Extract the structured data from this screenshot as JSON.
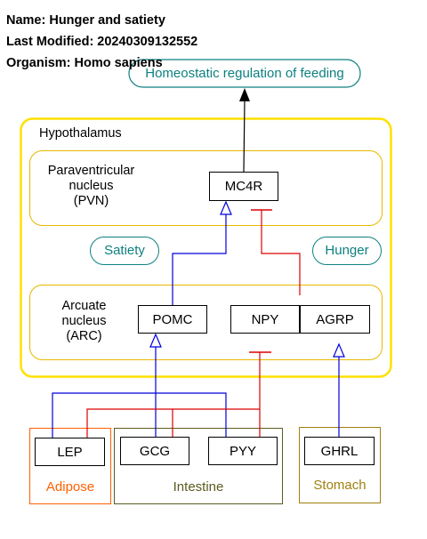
{
  "meta": {
    "name_label": "Name: Hunger and satiety",
    "modified_label": "Last Modified: 20240309132552",
    "organism_label": "Organism: Homo sapiens"
  },
  "colors": {
    "hypothalamus_border": "#ffe000",
    "region_border": "#e8b800",
    "teal": "#0e8080",
    "stimulation": "#0000dd",
    "inhibition": "#dd0000",
    "adipose": "#ff6000",
    "intestine": "#5c5c20",
    "stomach": "#a08010"
  },
  "pathway": {
    "outcome": "Homeostatic regulation of feeding",
    "hypothalamus": "Hypothalamus",
    "pvn": {
      "line1": "Paraventricular",
      "line2": "nucleus",
      "line3": "(PVN)"
    },
    "arc": {
      "line1": "Arcuate",
      "line2": "nucleus",
      "line3": "(ARC)"
    },
    "satiety": "Satiety",
    "hunger": "Hunger"
  },
  "genes": {
    "mc4r": "MC4R",
    "pomc": "POMC",
    "npy": "NPY",
    "agrp": "AGRP",
    "lep": "LEP",
    "gcg": "GCG",
    "pyy": "PYY",
    "ghrl": "GHRL"
  },
  "tissues": {
    "adipose": "Adipose",
    "intestine": "Intestine",
    "stomach": "Stomach"
  }
}
